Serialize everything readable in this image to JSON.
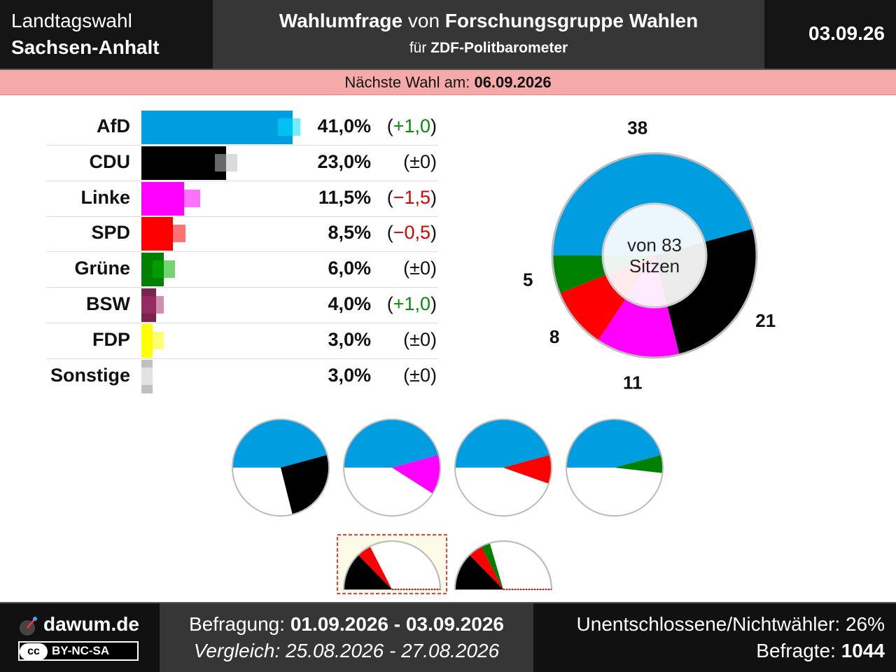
{
  "header": {
    "election_line1": "Landtagswahl",
    "election_line2": "Sachsen-Anhalt",
    "title_bold1": "Wahlumfrage",
    "title_mid": " von ",
    "title_bold2": "Forschungsgruppe Wahlen",
    "sub_prefix": "für ",
    "sub_bold": "ZDF-Politbarometer",
    "date": "03.09.26"
  },
  "next_election": {
    "label": "Nächste Wahl am: ",
    "date": "06.09.2026"
  },
  "chart_data": [
    {
      "type": "bar",
      "orientation": "horizontal",
      "categories": [
        "AfD",
        "CDU",
        "Linke",
        "SPD",
        "Grüne",
        "BSW",
        "FDP",
        "Sonstige"
      ],
      "values": [
        41.0,
        23.0,
        11.5,
        8.5,
        6.0,
        4.0,
        3.0,
        3.0
      ],
      "previous_values": [
        40.0,
        23.0,
        13.0,
        9.0,
        6.0,
        3.0,
        3.0,
        3.0
      ],
      "value_labels": [
        "41,0%",
        "23,0%",
        "11,5%",
        "8,5%",
        "6,0%",
        "4,0%",
        "3,0%",
        "3,0%"
      ],
      "change_labels": [
        "+1,0",
        "±0",
        "−1,5",
        "−0,5",
        "±0",
        "+1,0",
        "±0",
        "±0"
      ],
      "colors": [
        "#009ee0",
        "#000000",
        "#ff00ff",
        "#ff0000",
        "#008000",
        "#7b2450",
        "#ffff00",
        "#c0c0c0"
      ]
    },
    {
      "type": "pie",
      "variant": "donut",
      "categories": [
        "AfD",
        "CDU",
        "Linke",
        "SPD",
        "Grüne"
      ],
      "values": [
        38,
        21,
        11,
        8,
        5
      ],
      "colors": [
        "#009ee0",
        "#000000",
        "#ff00ff",
        "#ff0000",
        "#008000"
      ],
      "center_line1": "von 83",
      "center_line2": "Sitzen",
      "value_labels": [
        "38",
        "21",
        "11",
        "8",
        "5"
      ]
    },
    {
      "type": "pie",
      "variant": "coalitions",
      "coalitions": [
        {
          "parties": [
            "AfD",
            "CDU"
          ],
          "values": [
            38,
            21
          ],
          "colors": [
            "#009ee0",
            "#000000"
          ]
        },
        {
          "parties": [
            "AfD",
            "Linke"
          ],
          "values": [
            38,
            11
          ],
          "colors": [
            "#009ee0",
            "#ff00ff"
          ]
        },
        {
          "parties": [
            "AfD",
            "SPD"
          ],
          "values": [
            38,
            8
          ],
          "colors": [
            "#009ee0",
            "#ff0000"
          ]
        },
        {
          "parties": [
            "AfD",
            "Grüne"
          ],
          "values": [
            38,
            5
          ],
          "colors": [
            "#009ee0",
            "#008000"
          ]
        }
      ]
    },
    {
      "type": "pie",
      "variant": "half-coalitions",
      "coalitions": [
        {
          "parties": [
            "CDU",
            "SPD"
          ],
          "values": [
            21,
            8
          ],
          "colors": [
            "#000000",
            "#ff0000"
          ],
          "highlighted": true
        },
        {
          "parties": [
            "CDU",
            "SPD",
            "Grüne"
          ],
          "values": [
            21,
            8,
            5
          ],
          "colors": [
            "#000000",
            "#ff0000",
            "#008000"
          ],
          "highlighted": false
        }
      ]
    }
  ],
  "footer": {
    "brand": "dawum.de",
    "license_cc": "cc",
    "license_text": "BY-NC-SA",
    "survey_label": "Befragung: ",
    "survey_range": "01.09.2026 - 03.09.2026",
    "compare": "Vergleich: 25.08.2026 - 27.08.2026",
    "undecided": "Unentschlossene/Nichtwähler: 26%",
    "respondents_label": "Befragte: ",
    "respondents": "1044"
  }
}
